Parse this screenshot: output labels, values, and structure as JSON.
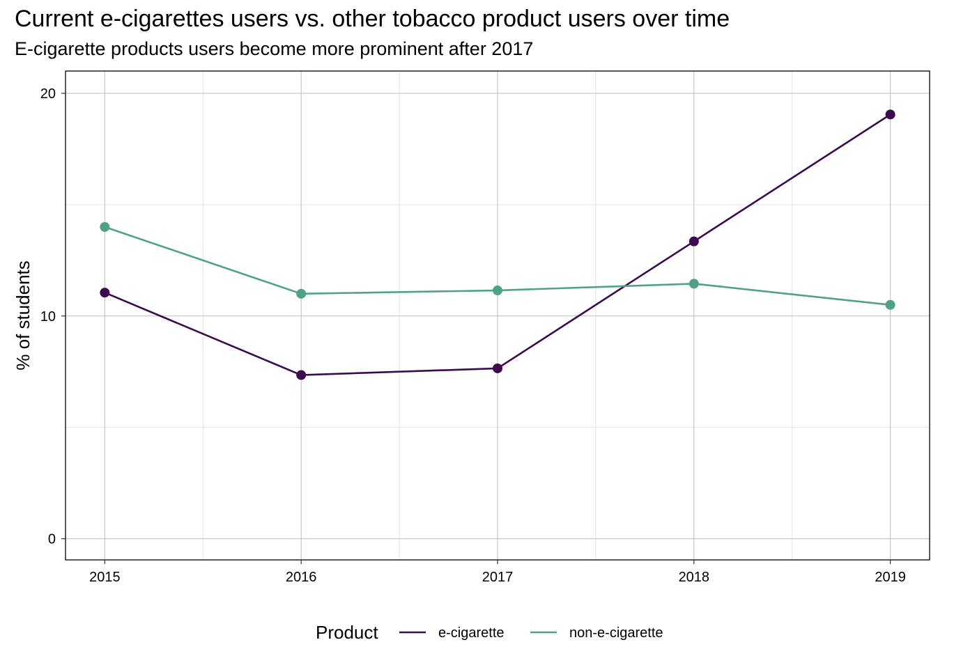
{
  "chart_data": {
    "type": "line",
    "title": "Current e-cigarettes users vs. other tobacco product users over time",
    "subtitle": "E-cigarette products users become more prominent after 2017",
    "xlabel": "",
    "ylabel": "% of students",
    "x": [
      2015,
      2016,
      2017,
      2018,
      2019
    ],
    "x_tick_labels": [
      "2015",
      "2016",
      "2017",
      "2018",
      "2019"
    ],
    "y_ticks": [
      0,
      10,
      20
    ],
    "y_tick_labels": [
      "0",
      "10",
      "20"
    ],
    "xlim": [
      2014.8,
      2019.2
    ],
    "ylim": [
      -0.95,
      21.0
    ],
    "grid": true,
    "legend_title": "Product",
    "legend_position": "bottom",
    "series": [
      {
        "name": "e-cigarette",
        "color": "#3b0a4f",
        "values": [
          11.05,
          7.35,
          7.65,
          13.35,
          19.05
        ]
      },
      {
        "name": "non-e-cigarette",
        "color": "#4fa385",
        "values": [
          14.0,
          11.0,
          11.15,
          11.45,
          10.5
        ]
      }
    ]
  }
}
